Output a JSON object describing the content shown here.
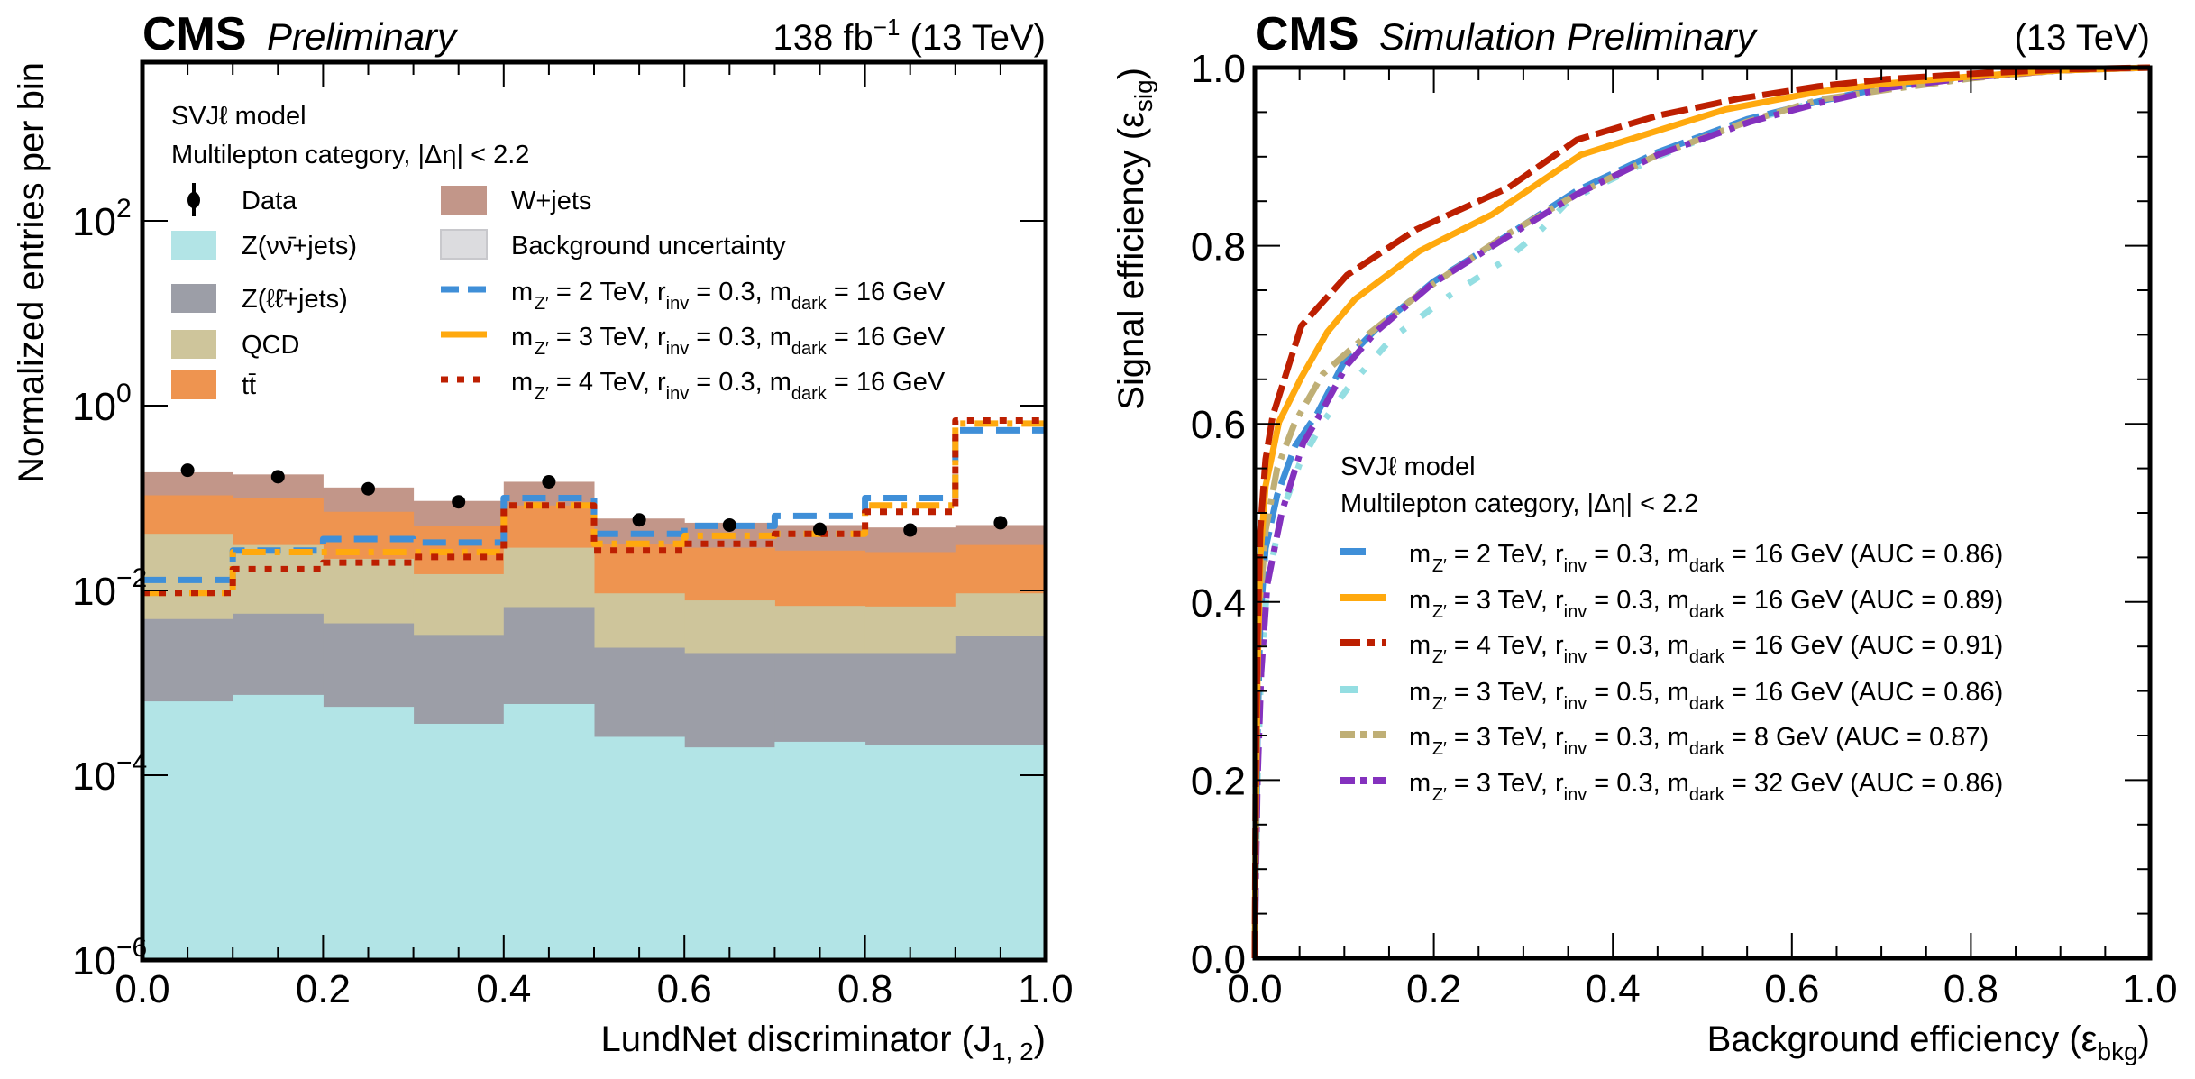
{
  "chart_data": [
    {
      "type": "bar",
      "subtype": "stacked-histogram-log",
      "header": {
        "experiment": "CMS",
        "label": "Preliminary",
        "lumi": "138 fb",
        "lumi_sup": "−1",
        "energy": "(13 TeV)"
      },
      "xlabel": "LundNet discriminator (J",
      "xlabel_sub": "1, 2",
      "xlabel_end": ")",
      "ylabel": "Normalized entries per bin",
      "xlim": [
        0.0,
        1.0
      ],
      "ylim": [
        1e-06,
        5000
      ],
      "yscale": "log",
      "x_ticks": [
        "0.0",
        "0.2",
        "0.4",
        "0.6",
        "0.8",
        "1.0"
      ],
      "y_ticks": [
        {
          "base": "10",
          "exp": "2",
          "value": 100
        },
        {
          "base": "10",
          "exp": "0",
          "value": 1
        },
        {
          "base": "10",
          "exp": "−2",
          "value": 0.01
        },
        {
          "base": "10",
          "exp": "−4",
          "value": 0.0001
        },
        {
          "base": "10",
          "exp": "−6",
          "value": 1e-06
        }
      ],
      "bin_edges": [
        0.0,
        0.1,
        0.2,
        0.3,
        0.4,
        0.5,
        0.6,
        0.7,
        0.8,
        0.9,
        1.0
      ],
      "annotation": [
        "SVJℓ model",
        "Multilepton category,  |Δη| < 2.2"
      ],
      "legend_placement": "top-left",
      "stack_cumulative_note": "values are cumulative stack heights (top of each layer)",
      "stack": [
        {
          "name": "Z(νν̄+jets)",
          "color": "#b2e4e6",
          "values": [
            0.00063,
            0.00074,
            0.00055,
            0.00036,
            0.00059,
            0.00026,
            0.0002,
            0.00023,
            0.00021,
            0.00021
          ]
        },
        {
          "name": "Z(ℓℓ̄+jets)",
          "color": "#9c9ea7",
          "values": [
            0.0049,
            0.0056,
            0.0044,
            0.0033,
            0.0066,
            0.0024,
            0.0021,
            0.0021,
            0.0021,
            0.0032
          ]
        },
        {
          "name": "QCD",
          "color": "#cec59b",
          "values": [
            0.041,
            0.031,
            0.022,
            0.015,
            0.029,
            0.0093,
            0.0078,
            0.0068,
            0.0067,
            0.0093
          ]
        },
        {
          "name": "tt̄",
          "color": "#ee9450",
          "values": [
            0.107,
            0.1,
            0.071,
            0.05,
            0.083,
            0.032,
            0.029,
            0.027,
            0.026,
            0.031
          ]
        },
        {
          "name": "W+jets",
          "color": "#c29689",
          "values": [
            0.19,
            0.18,
            0.13,
            0.093,
            0.15,
            0.06,
            0.054,
            0.051,
            0.048,
            0.051
          ]
        }
      ],
      "uncertainty": {
        "name": "Background uncertainty",
        "color": "#dcdcdf"
      },
      "data": {
        "name": "Data",
        "x": [
          0.05,
          0.15,
          0.25,
          0.35,
          0.45,
          0.55,
          0.65,
          0.75,
          0.85,
          0.95
        ],
        "values": [
          0.2,
          0.17,
          0.126,
          0.091,
          0.15,
          0.058,
          0.051,
          0.046,
          0.045,
          0.054
        ]
      },
      "signals": [
        {
          "name": "m_Z′ = 2 TeV, r_inv = 0.3, m_dark = 16 GeV",
          "mz": "2",
          "rinv": "0.3",
          "mdark": "16",
          "color": "#3f8fd8",
          "style": "dashed",
          "values": [
            0.013,
            0.027,
            0.036,
            0.033,
            0.1,
            0.041,
            0.05,
            0.064,
            0.1,
            0.54
          ]
        },
        {
          "name": "m_Z′ = 3 TeV, r_inv = 0.3, m_dark = 16 GeV",
          "mz": "3",
          "rinv": "0.3",
          "mdark": "16",
          "color": "#ffa90e",
          "style": "dashdot",
          "values": [
            0.0094,
            0.026,
            0.026,
            0.026,
            0.083,
            0.032,
            0.039,
            0.041,
            0.083,
            0.64
          ]
        },
        {
          "name": "m_Z′ = 4 TeV, r_inv = 0.3, m_dark = 16 GeV",
          "mz": "4",
          "rinv": "0.3",
          "mdark": "16",
          "color": "#bd1f01",
          "style": "dotted",
          "values": [
            0.0094,
            0.017,
            0.02,
            0.023,
            0.083,
            0.027,
            0.032,
            0.041,
            0.071,
            0.69
          ]
        }
      ],
      "legend": {
        "text_data": "Data",
        "text_wjets": "W+jets",
        "text_znn": "Z(νν̄+jets)",
        "text_unc": "Background uncertainty",
        "text_zll": "Z(ℓℓ̄+jets)",
        "text_qcd": "QCD",
        "text_tt": "tt̄"
      }
    },
    {
      "type": "line",
      "subtype": "roc",
      "header": {
        "experiment": "CMS",
        "label": "Simulation Preliminary",
        "energy": "(13 TeV)"
      },
      "xlabel": "Background efficiency (ε",
      "xlabel_sub": "bkg",
      "xlabel_end": ")",
      "ylabel": "Signal efficiency (ε",
      "ylabel_sub": "sig",
      "ylabel_end": ")",
      "xlim": [
        0.0,
        1.0
      ],
      "ylim": [
        0.0,
        1.0
      ],
      "x_ticks": [
        "0.0",
        "0.2",
        "0.4",
        "0.6",
        "0.8",
        "1.0"
      ],
      "y_ticks": [
        "0.0",
        "0.2",
        "0.4",
        "0.6",
        "0.8",
        "1.0"
      ],
      "annotation": [
        "SVJℓ model",
        "Multilepton category,  |Δη| < 2.2"
      ],
      "legend_placement": "center-right",
      "series": [
        {
          "mz": "2",
          "rinv": "0.3",
          "mdark": "16",
          "auc": "0.86",
          "color": "#3f8fd8",
          "style": "dashed-long",
          "x": [
            0,
            0.001,
            0.003,
            0.006,
            0.012,
            0.025,
            0.045,
            0.07,
            0.1,
            0.135,
            0.2,
            0.28,
            0.36,
            0.45,
            0.55,
            0.63,
            0.705,
            0.8,
            0.9,
            1.0
          ],
          "y": [
            0,
            0.1,
            0.25,
            0.38,
            0.46,
            0.52,
            0.575,
            0.612,
            0.67,
            0.706,
            0.76,
            0.81,
            0.862,
            0.905,
            0.942,
            0.962,
            0.978,
            0.99,
            0.997,
            1.0
          ]
        },
        {
          "mz": "3",
          "rinv": "0.3",
          "mdark": "16",
          "auc": "0.89",
          "color": "#ffa90e",
          "style": "solid",
          "x": [
            0,
            0.001,
            0.003,
            0.006,
            0.012,
            0.027,
            0.052,
            0.081,
            0.112,
            0.184,
            0.265,
            0.364,
            0.427,
            0.526,
            0.63,
            0.705,
            0.8,
            0.9,
            1.0
          ],
          "y": [
            0,
            0.15,
            0.32,
            0.45,
            0.53,
            0.602,
            0.652,
            0.703,
            0.74,
            0.794,
            0.835,
            0.902,
            0.922,
            0.953,
            0.973,
            0.982,
            0.99,
            0.997,
            1.0
          ]
        },
        {
          "mz": "4",
          "rinv": "0.3",
          "mdark": "16",
          "auc": "0.91",
          "color": "#bd1f01",
          "style": "dashed-red",
          "x": [
            0,
            0.001,
            0.003,
            0.006,
            0.012,
            0.02,
            0.052,
            0.103,
            0.18,
            0.283,
            0.36,
            0.45,
            0.54,
            0.63,
            0.705,
            0.8,
            0.9,
            1.0
          ],
          "y": [
            0,
            0.2,
            0.36,
            0.48,
            0.56,
            0.609,
            0.71,
            0.767,
            0.818,
            0.865,
            0.919,
            0.946,
            0.965,
            0.979,
            0.987,
            0.993,
            0.998,
            1.0
          ]
        },
        {
          "mz": "3",
          "rinv": "0.5",
          "mdark": "16",
          "auc": "0.86",
          "color": "#94dee2",
          "style": "dashdot-sparse",
          "x": [
            0,
            0.001,
            0.003,
            0.007,
            0.014,
            0.03,
            0.05,
            0.076,
            0.103,
            0.153,
            0.216,
            0.283,
            0.319,
            0.351,
            0.45,
            0.55,
            0.63,
            0.705,
            0.8,
            0.9,
            1.0
          ],
          "y": [
            0,
            0.08,
            0.2,
            0.33,
            0.42,
            0.5,
            0.555,
            0.602,
            0.639,
            0.696,
            0.743,
            0.786,
            0.817,
            0.851,
            0.9,
            0.94,
            0.962,
            0.978,
            0.99,
            0.997,
            1.0
          ]
        },
        {
          "mz": "3",
          "rinv": "0.3",
          "mdark": "8",
          "auc": "0.87",
          "color": "#bfaf76",
          "style": "dashdot",
          "x": [
            0,
            0.001,
            0.003,
            0.006,
            0.012,
            0.025,
            0.045,
            0.076,
            0.121,
            0.189,
            0.279,
            0.36,
            0.45,
            0.549,
            0.63,
            0.705,
            0.8,
            0.9,
            1.0
          ],
          "y": [
            0,
            0.12,
            0.28,
            0.4,
            0.48,
            0.55,
            0.602,
            0.656,
            0.696,
            0.75,
            0.811,
            0.858,
            0.902,
            0.939,
            0.964,
            0.975,
            0.988,
            0.997,
            1.0
          ]
        },
        {
          "mz": "3",
          "rinv": "0.3",
          "mdark": "32",
          "auc": "0.86",
          "color": "#8431be",
          "style": "dashdot",
          "x": [
            0,
            0.001,
            0.003,
            0.007,
            0.014,
            0.03,
            0.054,
            0.072,
            0.103,
            0.135,
            0.198,
            0.279,
            0.36,
            0.45,
            0.553,
            0.63,
            0.705,
            0.8,
            0.9,
            1.0
          ],
          "y": [
            0,
            0.08,
            0.2,
            0.32,
            0.42,
            0.5,
            0.578,
            0.609,
            0.666,
            0.703,
            0.757,
            0.808,
            0.858,
            0.902,
            0.939,
            0.96,
            0.977,
            0.989,
            0.997,
            1.0
          ]
        }
      ]
    }
  ],
  "legend_fragments": {
    "m": "m",
    "z_sub": "Z′",
    "eq_tev": " = ",
    "tev": " TeV, r",
    "inv_sub": "inv",
    "eq": " = ",
    "comma_m": ", m",
    "dark_sub": "dark",
    "gev": " GeV",
    "auc_open": " (AUC = ",
    "auc_close": ")"
  }
}
